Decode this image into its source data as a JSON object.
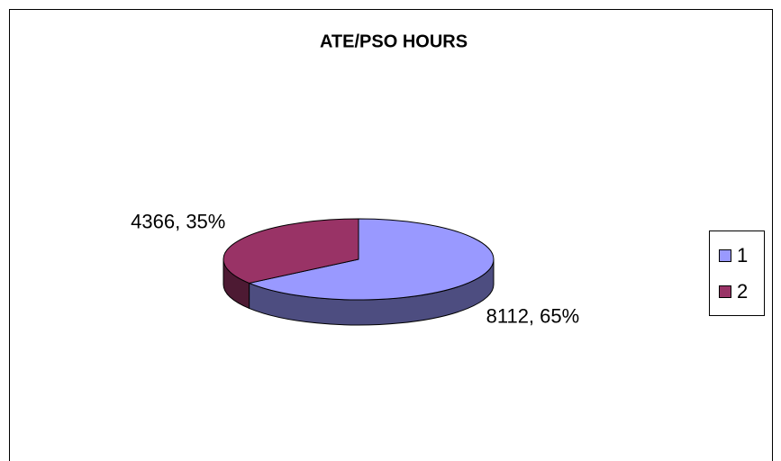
{
  "chart_data": {
    "type": "pie",
    "title": "ATE/PSO HOURS",
    "categories": [
      "1",
      "2"
    ],
    "values": [
      8112,
      4366
    ],
    "value_labels": [
      "8112, 65%",
      "4366, 35%"
    ],
    "colors": [
      "#9999ff",
      "#993366"
    ],
    "legend": "right"
  }
}
